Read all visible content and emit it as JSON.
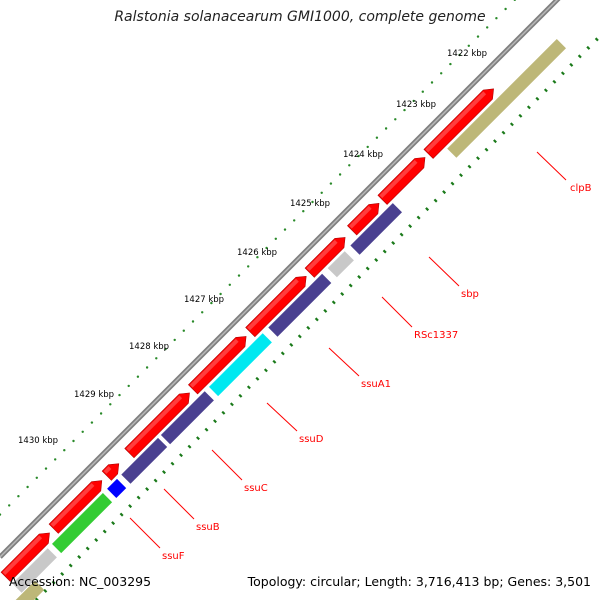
{
  "header": {
    "title": "Ralstonia solanacearum GMI1000, complete genome"
  },
  "footer": {
    "accession": "Accession: NC_003295",
    "summary": "Topology: circular; Length: 3,716,413 bp; Genes: 3,501"
  },
  "scale": {
    "tick_labels": [
      "1422 kbp",
      "1423 kbp",
      "1424 kbp",
      "1425 kbp",
      "1426 kbp",
      "1427 kbp",
      "1428 kbp",
      "1429 kbp",
      "1430 kbp"
    ]
  },
  "genes": {
    "labels": [
      "clpB",
      "sbp",
      "RSc1337",
      "ssuA1",
      "ssuD",
      "ssuC",
      "ssuB",
      "ssuF"
    ]
  },
  "colors": {
    "cds_red": "#ff0000",
    "dark_blue": "#4a4090",
    "olive": "#bdb778",
    "light_gray": "#c8c8c8",
    "cyan": "#00e8f0",
    "bright_blue": "#0000ff",
    "green": "#33cc33",
    "label_red": "#ff0000",
    "tick_green": "#1a7a1a"
  }
}
